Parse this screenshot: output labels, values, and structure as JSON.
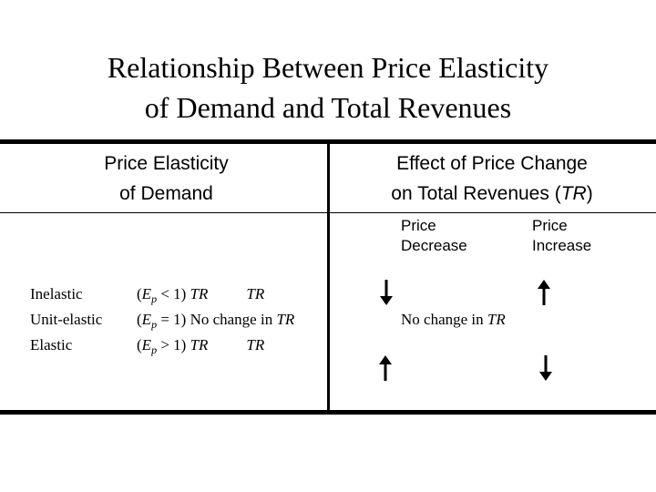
{
  "title": {
    "line1": "Relationship Between Price Elasticity",
    "line2": "of Demand and Total Revenues"
  },
  "headers": {
    "left_line1": "Price Elasticity",
    "left_line2": "of Demand",
    "right_line1": "Effect of Price Change",
    "right_line2_text": "on Total Revenues (",
    "right_line2_abbr": "TR",
    "right_line2_close": ")"
  },
  "subheaders": {
    "decrease_line1": "Price",
    "decrease_line2": "Decrease",
    "increase_line1": "Price",
    "increase_line2": "Increase"
  },
  "rows": [
    {
      "label": "Inelastic",
      "open": "(",
      "e": "E",
      "p": "p",
      "condition": " < 1)",
      "effect_a": "TR",
      "effect_b": "TR",
      "decrease_arrow": "down",
      "increase_arrow": "up"
    },
    {
      "label": "Unit-elastic",
      "open": "(",
      "e": "E",
      "p": "p",
      "condition": " = 1)",
      "effect_text": "No change in ",
      "effect_abbr": "TR",
      "decrease_text": "No change in ",
      "decrease_abbr": "TR"
    },
    {
      "label": "Elastic",
      "open": "(",
      "e": "E",
      "p": "p",
      "condition": " > 1)",
      "effect_a": "TR",
      "effect_b": "TR",
      "decrease_arrow": "up",
      "increase_arrow": "down"
    }
  ],
  "icons": {
    "up": "arrow-up-icon",
    "down": "arrow-down-icon"
  }
}
